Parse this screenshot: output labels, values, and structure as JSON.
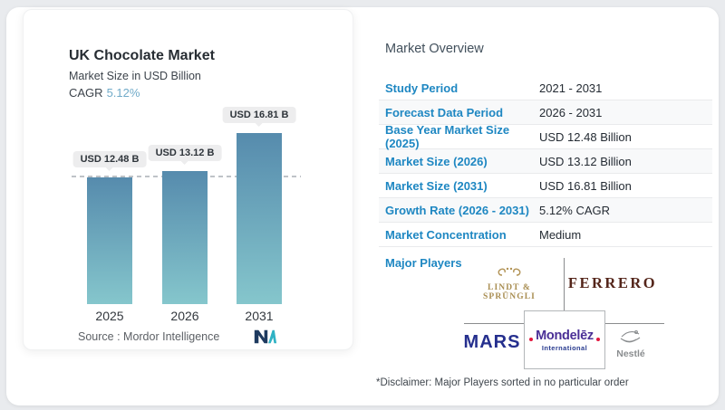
{
  "chart_card": {
    "title": "UK Chocolate Market",
    "subtitle": "Market Size in USD Billion",
    "cagr_label": "CAGR",
    "cagr_value": "5.12%",
    "source_label": "Source :  ",
    "source_value": "Mordor Intelligence"
  },
  "chart_data": {
    "type": "bar",
    "title": "UK Chocolate Market",
    "subtitle": "Market Size in USD Billion",
    "cagr": "5.12%",
    "unit": "USD Billion",
    "categories": [
      "2025",
      "2026",
      "2031"
    ],
    "values": [
      12.48,
      13.12,
      16.81
    ],
    "bar_labels": [
      "USD 12.48 B",
      "USD 13.12 B",
      "USD 16.81 B"
    ],
    "baseline_value": 12.48,
    "bar_gradient_top": "#568bad",
    "bar_gradient_bottom": "#85c6cc",
    "grid": false,
    "legend": false
  },
  "overview": {
    "heading": "Market Overview",
    "rows": [
      {
        "label": "Study Period",
        "value": "2021 - 2031"
      },
      {
        "label": "Forecast Data Period",
        "value": "2026 - 2031"
      },
      {
        "label": "Base Year Market Size (2025)",
        "value": "USD 12.48 Billion"
      },
      {
        "label": "Market Size (2026)",
        "value": "USD 13.12 Billion"
      },
      {
        "label": "Market Size (2031)",
        "value": "USD 16.81 Billion"
      },
      {
        "label": "Growth Rate (2026 - 2031)",
        "value": "5.12% CAGR"
      },
      {
        "label": "Market Concentration",
        "value": "Medium"
      }
    ],
    "major_players_label": "Major Players",
    "players": {
      "lindt": {
        "name": "LINDT & SPRÜNGLI",
        "color": "#a98e52"
      },
      "ferrero": {
        "name": "FERRERO",
        "color": "#54251a"
      },
      "mars": {
        "name": "MARS",
        "color": "#252f8e"
      },
      "mondelez": {
        "name": "Mondelēz",
        "sub": "International",
        "color": "#4a2f96",
        "accent": "#e3173e"
      },
      "nestle": {
        "name": "Nestlé",
        "color": "#8a8d8f"
      }
    },
    "disclaimer": "*Disclaimer: Major Players sorted in no particular order"
  },
  "colors": {
    "row_label_blue": "#1e87c2",
    "cagr_blue": "#71abc9",
    "mordor_navy": "#1e3a5f",
    "mordor_teal": "#2fb2c4",
    "dash_line": "#bfc3c7"
  }
}
